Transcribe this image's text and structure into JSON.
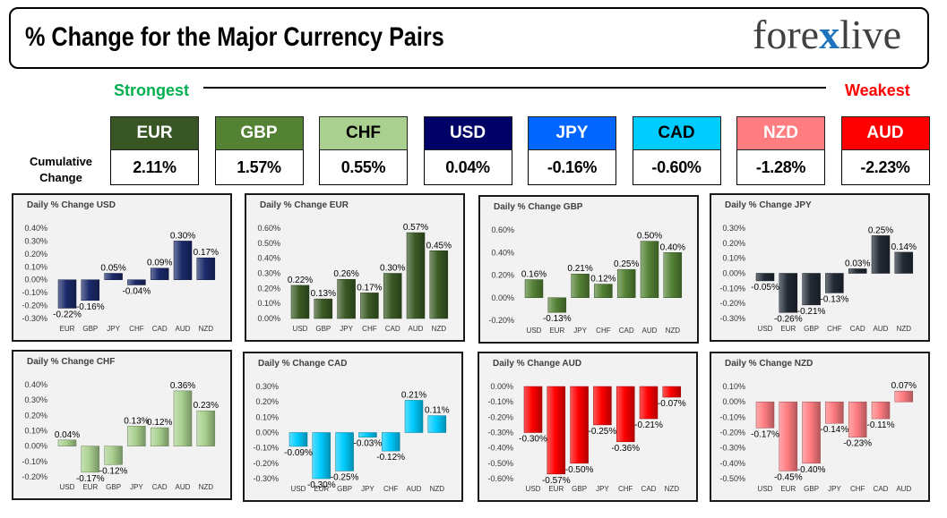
{
  "header": {
    "title": "% Change for the Major Currency Pairs"
  },
  "logo": {
    "part1": "fore",
    "mark": "x",
    "part2": "live",
    "text_color": "#404040",
    "mark_color": "#1e73be"
  },
  "strength_scale": {
    "strongest": "Strongest",
    "weakest": "Weakest",
    "strongest_color": "#00b050",
    "weakest_color": "#ff0000"
  },
  "cumulative": {
    "label": "Cumulative Change",
    "currencies": [
      {
        "code": "EUR",
        "value": "2.11%",
        "color": "#375623",
        "text_color": "#ffffff"
      },
      {
        "code": "GBP",
        "value": "1.57%",
        "color": "#548235",
        "text_color": "#ffffff"
      },
      {
        "code": "CHF",
        "value": "0.55%",
        "color": "#a9d08e",
        "text_color": "#000000"
      },
      {
        "code": "USD",
        "value": "0.04%",
        "color": "#000066",
        "text_color": "#ffffff"
      },
      {
        "code": "JPY",
        "value": "-0.16%",
        "color": "#0066ff",
        "text_color": "#ffffff"
      },
      {
        "code": "CAD",
        "value": "-0.60%",
        "color": "#00ccff",
        "text_color": "#000000"
      },
      {
        "code": "NZD",
        "value": "-1.28%",
        "color": "#ff7c80",
        "text_color": "#ffffff"
      },
      {
        "code": "AUD",
        "value": "-2.23%",
        "color": "#ff0000",
        "text_color": "#ffffff"
      }
    ]
  },
  "chart_data": [
    {
      "type": "bar",
      "title": "Daily % Change USD",
      "categories": [
        "EUR",
        "GBP",
        "JPY",
        "CHF",
        "CAD",
        "AUD",
        "NZD"
      ],
      "values": [
        -0.22,
        -0.16,
        0.05,
        -0.04,
        0.09,
        0.3,
        0.17
      ],
      "ylim": [
        -0.3,
        0.4
      ],
      "yticks": [
        0.4,
        0.3,
        0.2,
        0.1,
        0.0,
        -0.1,
        -0.2,
        -0.3
      ],
      "grid": false,
      "color": "#1b2a6b"
    },
    {
      "type": "bar",
      "title": "Daily % Change EUR",
      "categories": [
        "USD",
        "GBP",
        "JPY",
        "CHF",
        "CAD",
        "AUD",
        "NZD"
      ],
      "values": [
        0.22,
        0.13,
        0.26,
        0.17,
        0.3,
        0.57,
        0.45
      ],
      "ylim": [
        0.0,
        0.6
      ],
      "yticks": [
        0.6,
        0.5,
        0.4,
        0.3,
        0.2,
        0.1,
        0.0
      ],
      "grid": false,
      "color": "#3a5a24"
    },
    {
      "type": "bar",
      "title": "Daily % Change GBP",
      "categories": [
        "USD",
        "EUR",
        "JPY",
        "CHF",
        "CAD",
        "AUD",
        "NZD"
      ],
      "values": [
        0.16,
        -0.13,
        0.21,
        0.12,
        0.25,
        0.5,
        0.4
      ],
      "ylim": [
        -0.2,
        0.6
      ],
      "yticks": [
        0.6,
        0.4,
        0.2,
        0.0,
        -0.2
      ],
      "grid": false,
      "color": "#548235"
    },
    {
      "type": "bar",
      "title": "Daily % Change JPY",
      "categories": [
        "USD",
        "EUR",
        "GBP",
        "CHF",
        "CAD",
        "AUD",
        "NZD"
      ],
      "values": [
        -0.05,
        -0.26,
        -0.21,
        -0.13,
        0.03,
        0.25,
        0.14
      ],
      "ylim": [
        -0.3,
        0.3
      ],
      "yticks": [
        0.3,
        0.2,
        0.1,
        0.0,
        -0.1,
        -0.2,
        -0.3
      ],
      "grid": false,
      "color": "#222a35"
    },
    {
      "type": "bar",
      "title": "Daily % Change CHF",
      "categories": [
        "USD",
        "EUR",
        "GBP",
        "JPY",
        "CAD",
        "AUD",
        "NZD"
      ],
      "values": [
        0.04,
        -0.17,
        -0.12,
        0.13,
        0.12,
        0.36,
        0.23
      ],
      "ylim": [
        -0.2,
        0.4
      ],
      "yticks": [
        0.4,
        0.3,
        0.2,
        0.1,
        0.0,
        -0.1,
        -0.2
      ],
      "grid": false,
      "color": "#a9d08e"
    },
    {
      "type": "bar",
      "title": "Daily % Change CAD",
      "categories": [
        "USD",
        "EUR",
        "GBP",
        "JPY",
        "CHF",
        "AUD",
        "NZD"
      ],
      "values": [
        -0.09,
        -0.3,
        -0.25,
        -0.03,
        -0.12,
        0.21,
        0.11
      ],
      "ylim": [
        -0.3,
        0.3
      ],
      "yticks": [
        0.3,
        0.2,
        0.1,
        0.0,
        -0.1,
        -0.2,
        -0.3
      ],
      "grid": false,
      "color": "#00ccff"
    },
    {
      "type": "bar",
      "title": "Daily % Change AUD",
      "categories": [
        "USD",
        "EUR",
        "GBP",
        "JPY",
        "CHF",
        "CAD",
        "NZD"
      ],
      "values": [
        -0.3,
        -0.57,
        -0.5,
        -0.25,
        -0.36,
        -0.21,
        -0.07
      ],
      "ylim": [
        -0.6,
        0.0
      ],
      "yticks": [
        0.0,
        -0.1,
        -0.2,
        -0.3,
        -0.4,
        -0.5,
        -0.6
      ],
      "grid": false,
      "color": "#ff0000"
    },
    {
      "type": "bar",
      "title": "Daily % Change NZD",
      "categories": [
        "USD",
        "EUR",
        "GBP",
        "JPY",
        "CHF",
        "CAD",
        "AUD"
      ],
      "values": [
        -0.17,
        -0.45,
        -0.4,
        -0.14,
        -0.23,
        -0.11,
        0.07
      ],
      "ylim": [
        -0.5,
        0.1
      ],
      "yticks": [
        0.1,
        0.0,
        -0.1,
        -0.2,
        -0.3,
        -0.4,
        -0.5
      ],
      "grid": false,
      "color": "#ff7c80"
    }
  ]
}
